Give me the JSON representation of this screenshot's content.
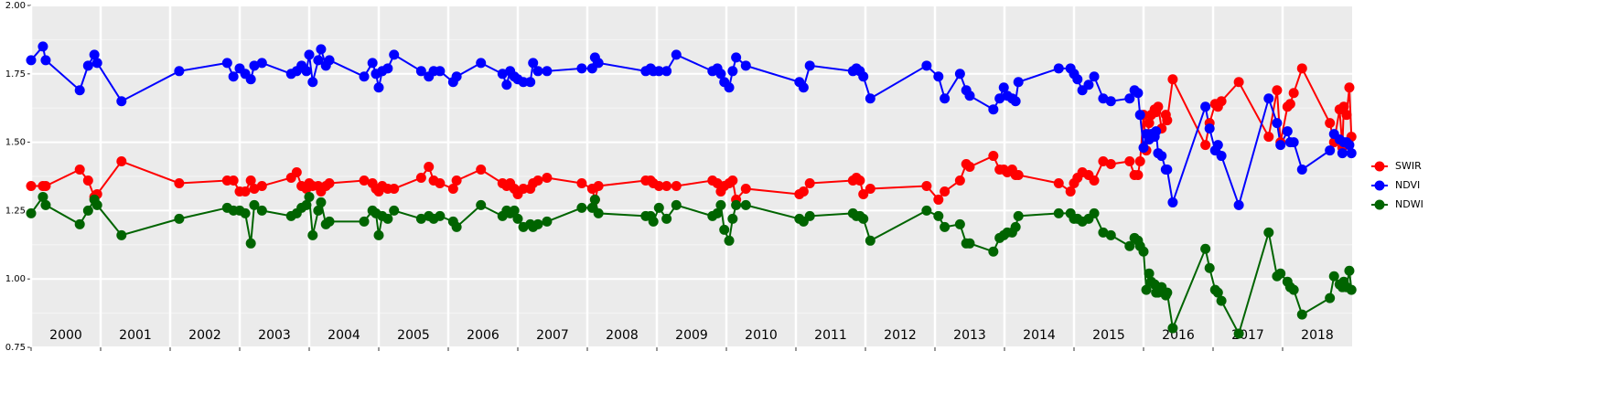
{
  "chart_data": {
    "type": "line",
    "x": [
      2000,
      2000.17,
      2000.21,
      2000.7,
      2000.82,
      2000.91,
      2000.95,
      2001.3,
      2002.13,
      2002.82,
      2002.91,
      2003,
      2003.08,
      2003.16,
      2003.21,
      2003.32,
      2003.74,
      2003.82,
      2003.89,
      2003.96,
      2004,
      2004.05,
      2004.13,
      2004.17,
      2004.24,
      2004.29,
      2004.79,
      2004.91,
      2004.96,
      2005,
      2005.05,
      2005.13,
      2005.22,
      2005.61,
      2005.72,
      2005.79,
      2005.88,
      2006.07,
      2006.12,
      2006.47,
      2006.78,
      2006.84,
      2006.89,
      2006.95,
      2007,
      2007.08,
      2007.18,
      2007.22,
      2007.29,
      2007.42,
      2007.92,
      2008.07,
      2008.11,
      2008.16,
      2008.84,
      2008.91,
      2008.95,
      2009.03,
      2009.14,
      2009.28,
      2009.8,
      2009.87,
      2009.92,
      2009.97,
      2010.04,
      2010.09,
      2010.14,
      2010.28,
      2011.05,
      2011.11,
      2011.2,
      2011.82,
      2011.87,
      2011.92,
      2011.97,
      2012.07,
      2012.88,
      2013.05,
      2013.14,
      2013.36,
      2013.45,
      2013.5,
      2013.84,
      2013.93,
      2013.99,
      2014.04,
      2014.11,
      2014.16,
      2014.2,
      2014.78,
      2014.95,
      2015,
      2015.05,
      2015.12,
      2015.21,
      2015.29,
      2015.42,
      2015.53,
      2015.8,
      2015.87,
      2015.92,
      2015.95,
      2016,
      2016.04,
      2016.08,
      2016.11,
      2016.16,
      2016.18,
      2016.21,
      2016.26,
      2016.32,
      2016.34,
      2016.42,
      2016.89,
      2016.95,
      2017.03,
      2017.07,
      2017.12,
      2017.37,
      2017.8,
      2017.92,
      2017.97,
      2018.07,
      2018.11,
      2018.16,
      2018.28,
      2018.68,
      2018.74,
      2018.82,
      2018.86,
      2018.88,
      2018.92,
      2018.96,
      2018.99
    ],
    "series": [
      {
        "name": "SWIR",
        "color": "#ff0000",
        "values": [
          1.34,
          1.34,
          1.34,
          1.4,
          1.36,
          1.3,
          1.31,
          1.43,
          1.35,
          1.36,
          1.36,
          1.32,
          1.32,
          1.36,
          1.33,
          1.34,
          1.37,
          1.39,
          1.34,
          1.33,
          1.35,
          1.34,
          1.34,
          1.32,
          1.34,
          1.35,
          1.36,
          1.35,
          1.33,
          1.32,
          1.34,
          1.33,
          1.33,
          1.37,
          1.41,
          1.36,
          1.35,
          1.33,
          1.36,
          1.4,
          1.35,
          1.34,
          1.35,
          1.33,
          1.31,
          1.33,
          1.33,
          1.35,
          1.36,
          1.37,
          1.35,
          1.33,
          1.29,
          1.34,
          1.36,
          1.36,
          1.35,
          1.34,
          1.34,
          1.34,
          1.36,
          1.35,
          1.32,
          1.34,
          1.35,
          1.36,
          1.29,
          1.33,
          1.31,
          1.32,
          1.35,
          1.36,
          1.37,
          1.36,
          1.31,
          1.33,
          1.34,
          1.29,
          1.32,
          1.36,
          1.42,
          1.41,
          1.45,
          1.4,
          1.4,
          1.39,
          1.4,
          1.38,
          1.38,
          1.35,
          1.32,
          1.35,
          1.37,
          1.39,
          1.38,
          1.36,
          1.43,
          1.42,
          1.43,
          1.38,
          1.38,
          1.43,
          1.6,
          1.47,
          1.57,
          1.6,
          1.62,
          1.61,
          1.63,
          1.55,
          1.6,
          1.58,
          1.73,
          1.49,
          1.57,
          1.64,
          1.63,
          1.65,
          1.72,
          1.52,
          1.69,
          1.5,
          1.63,
          1.64,
          1.68,
          1.77,
          1.57,
          1.5,
          1.62,
          1.48,
          1.63,
          1.6,
          1.7,
          1.52
        ]
      },
      {
        "name": "NDVI",
        "color": "#0000ff",
        "values": [
          1.8,
          1.85,
          1.8,
          1.69,
          1.78,
          1.82,
          1.79,
          1.65,
          1.76,
          1.79,
          1.74,
          1.77,
          1.75,
          1.73,
          1.78,
          1.79,
          1.75,
          1.76,
          1.78,
          1.76,
          1.82,
          1.72,
          1.8,
          1.84,
          1.78,
          1.8,
          1.74,
          1.79,
          1.75,
          1.7,
          1.76,
          1.77,
          1.82,
          1.76,
          1.74,
          1.76,
          1.76,
          1.72,
          1.74,
          1.79,
          1.75,
          1.71,
          1.76,
          1.74,
          1.73,
          1.72,
          1.72,
          1.79,
          1.76,
          1.76,
          1.77,
          1.77,
          1.81,
          1.79,
          1.76,
          1.77,
          1.76,
          1.76,
          1.76,
          1.82,
          1.76,
          1.77,
          1.75,
          1.72,
          1.7,
          1.76,
          1.81,
          1.78,
          1.72,
          1.7,
          1.78,
          1.76,
          1.77,
          1.76,
          1.74,
          1.66,
          1.78,
          1.74,
          1.66,
          1.75,
          1.69,
          1.67,
          1.62,
          1.66,
          1.7,
          1.67,
          1.66,
          1.65,
          1.72,
          1.77,
          1.77,
          1.75,
          1.73,
          1.69,
          1.71,
          1.74,
          1.66,
          1.65,
          1.66,
          1.69,
          1.68,
          1.6,
          1.48,
          1.53,
          1.51,
          1.53,
          1.52,
          1.54,
          1.46,
          1.45,
          1.4,
          1.4,
          1.28,
          1.63,
          1.55,
          1.47,
          1.49,
          1.45,
          1.27,
          1.66,
          1.57,
          1.49,
          1.54,
          1.5,
          1.5,
          1.4,
          1.47,
          1.53,
          1.51,
          1.46,
          1.5,
          1.5,
          1.49,
          1.46
        ]
      },
      {
        "name": "NDWI",
        "color": "#006400",
        "values": [
          1.24,
          1.3,
          1.27,
          1.2,
          1.25,
          1.29,
          1.27,
          1.16,
          1.22,
          1.26,
          1.25,
          1.25,
          1.24,
          1.13,
          1.27,
          1.25,
          1.23,
          1.24,
          1.26,
          1.27,
          1.3,
          1.16,
          1.25,
          1.28,
          1.2,
          1.21,
          1.21,
          1.25,
          1.24,
          1.16,
          1.23,
          1.22,
          1.25,
          1.22,
          1.23,
          1.22,
          1.23,
          1.21,
          1.19,
          1.27,
          1.23,
          1.25,
          1.24,
          1.25,
          1.22,
          1.19,
          1.2,
          1.19,
          1.2,
          1.21,
          1.26,
          1.26,
          1.29,
          1.24,
          1.23,
          1.23,
          1.21,
          1.26,
          1.22,
          1.27,
          1.23,
          1.24,
          1.27,
          1.18,
          1.14,
          1.22,
          1.27,
          1.27,
          1.22,
          1.21,
          1.23,
          1.24,
          1.23,
          1.23,
          1.22,
          1.14,
          1.25,
          1.23,
          1.19,
          1.2,
          1.13,
          1.13,
          1.1,
          1.15,
          1.16,
          1.17,
          1.17,
          1.19,
          1.23,
          1.24,
          1.24,
          1.22,
          1.22,
          1.21,
          1.22,
          1.24,
          1.17,
          1.16,
          1.12,
          1.15,
          1.14,
          1.12,
          1.1,
          0.96,
          1.02,
          0.99,
          0.98,
          0.95,
          0.95,
          0.97,
          0.94,
          0.95,
          0.82,
          1.11,
          1.04,
          0.96,
          0.95,
          0.92,
          0.8,
          1.17,
          1.01,
          1.02,
          0.99,
          0.97,
          0.96,
          0.87,
          0.93,
          1.01,
          0.98,
          0.97,
          0.99,
          0.97,
          1.03,
          0.96
        ]
      }
    ],
    "xlim": [
      2000,
      2019
    ],
    "xticks": [
      2000,
      2001,
      2002,
      2003,
      2004,
      2005,
      2006,
      2007,
      2008,
      2009,
      2010,
      2011,
      2012,
      2013,
      2014,
      2015,
      2016,
      2017,
      2018
    ],
    "ylim": [
      0.75,
      2
    ],
    "yticks": [
      0.75,
      {
        "value": 1,
        "label": "1.00"
      },
      1.25,
      {
        "value": 1.5,
        "label": "1.50"
      },
      1.75,
      {
        "value": 2,
        "label": "2.00"
      }
    ],
    "grid": true,
    "legend": "right"
  }
}
